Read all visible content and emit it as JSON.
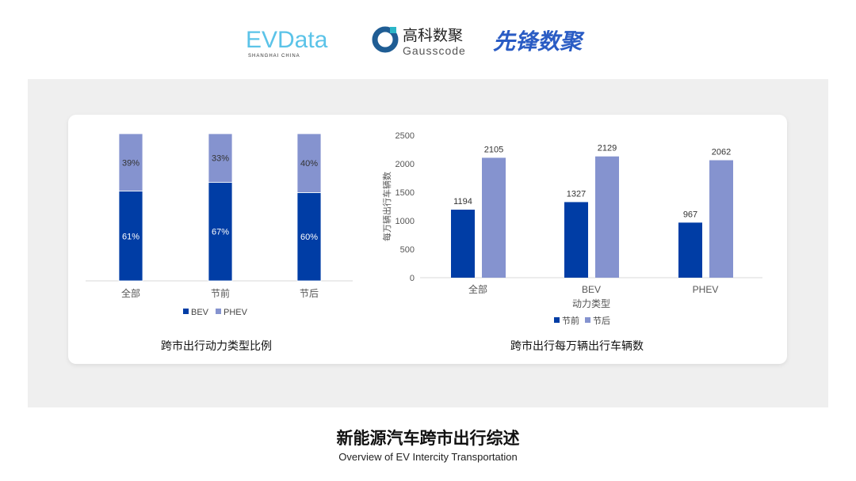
{
  "logos": {
    "evdata": "EVData",
    "evdata_sub": "SHANGHAI CHINA",
    "gauss_cn": "高科数聚",
    "gauss_en": "Gausscode",
    "xianfeng": "先锋数聚"
  },
  "colors": {
    "dark": "#003da5",
    "light": "#8593cf",
    "background": "#efefef"
  },
  "footer": {
    "title": "新能源汽车跨市出行综述",
    "subtitle": "Overview of EV Intercity Transportation"
  },
  "chart_data": [
    {
      "type": "bar",
      "stacked": true,
      "percent": true,
      "title": "跨市出行动力类型比例",
      "categories": [
        "全部",
        "节前",
        "节后"
      ],
      "series": [
        {
          "name": "BEV",
          "values": [
            61,
            67,
            60
          ],
          "labels": [
            "61%",
            "67%",
            "60%"
          ]
        },
        {
          "name": "PHEV",
          "values": [
            39,
            33,
            40
          ],
          "labels": [
            "39%",
            "33%",
            "40%"
          ]
        }
      ],
      "ylim": [
        0,
        100
      ],
      "grid": false,
      "legend": "bottom"
    },
    {
      "type": "bar",
      "title": "跨市出行每万辆出行车辆数",
      "xlabel": "动力类型",
      "ylabel": "每万辆出行车辆数",
      "categories": [
        "全部",
        "BEV",
        "PHEV"
      ],
      "series": [
        {
          "name": "节前",
          "values": [
            1194,
            1327,
            967
          ]
        },
        {
          "name": "节后",
          "values": [
            2105,
            2129,
            2062
          ]
        }
      ],
      "ylim": [
        0,
        2500
      ],
      "yticks": [
        "0",
        "500",
        "1000",
        "1500",
        "2000",
        "2500"
      ],
      "grid": false,
      "legend": "bottom"
    }
  ]
}
